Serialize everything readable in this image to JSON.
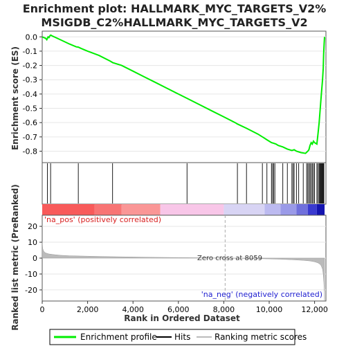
{
  "chart_data": [
    {
      "type": "line",
      "title_line1": "Enrichment plot: HALLMARK_MYC_TARGETS_V2%",
      "title_line2": "MSIGDB_C2%HALLMARK_MYC_TARGETS_V2",
      "ylabel": "Enrichment score (ES)",
      "xlim": [
        0,
        12500
      ],
      "ylim": [
        -0.88,
        0.04
      ],
      "yticks": [
        0.0,
        -0.1,
        -0.2,
        -0.3,
        -0.4,
        -0.5,
        -0.6,
        -0.7,
        -0.8
      ],
      "ytick_labels": [
        "0.0",
        "-0.1",
        "-0.2",
        "-0.3",
        "-0.4",
        "-0.5",
        "-0.6",
        "-0.7",
        "-0.8"
      ],
      "grid": true,
      "color": "#00ee00",
      "series": [
        {
          "name": "Enrichment profile",
          "x": [
            0,
            150,
            200,
            260,
            300,
            350,
            380,
            420,
            800,
            1200,
            1500,
            1590,
            1700,
            2000,
            2500,
            3000,
            3100,
            3500,
            4000,
            4500,
            5000,
            5500,
            6000,
            6380,
            7000,
            7500,
            8000,
            8500,
            8600,
            9000,
            9500,
            9700,
            9900,
            10100,
            10200,
            10300,
            10400,
            10600,
            10800,
            11000,
            11100,
            11200,
            11400,
            11600,
            11700,
            11750,
            11800,
            11850,
            11900,
            11950,
            12000,
            12100,
            12150,
            12200,
            12250,
            12300,
            12350,
            12380,
            12400,
            12420,
            12440
          ],
          "y": [
            0.0,
            -0.01,
            -0.02,
            0.0,
            -0.005,
            0.01,
            0.012,
            0.008,
            -0.02,
            -0.05,
            -0.07,
            -0.072,
            -0.08,
            -0.1,
            -0.13,
            -0.17,
            -0.18,
            -0.2,
            -0.24,
            -0.28,
            -0.32,
            -0.36,
            -0.4,
            -0.43,
            -0.48,
            -0.52,
            -0.56,
            -0.6,
            -0.61,
            -0.64,
            -0.68,
            -0.7,
            -0.72,
            -0.74,
            -0.745,
            -0.75,
            -0.76,
            -0.77,
            -0.785,
            -0.795,
            -0.79,
            -0.8,
            -0.81,
            -0.815,
            -0.8,
            -0.79,
            -0.76,
            -0.74,
            -0.75,
            -0.73,
            -0.74,
            -0.75,
            -0.68,
            -0.6,
            -0.5,
            -0.4,
            -0.3,
            -0.22,
            -0.12,
            -0.05,
            0.0
          ]
        }
      ]
    },
    {
      "type": "hits",
      "name": "Hits",
      "color": "#000000",
      "hit_positions": [
        230,
        370,
        1590,
        3100,
        6380,
        8600,
        9000,
        9700,
        9900,
        10100,
        10150,
        10200,
        10250,
        10600,
        10800,
        11000,
        11050,
        11100,
        11200,
        11300,
        11500,
        11650,
        11700,
        11750,
        11800,
        11850,
        11900,
        11950,
        12000,
        12100,
        12150,
        12200,
        12230,
        12260,
        12290,
        12320,
        12350,
        12380,
        12410
      ]
    },
    {
      "type": "heatmap",
      "name": "rank color bar",
      "segments": [
        {
          "from": 0,
          "to": 2300,
          "color": "#f85a5a"
        },
        {
          "from": 2300,
          "to": 3500,
          "color": "#f87474"
        },
        {
          "from": 3500,
          "to": 5200,
          "color": "#fa9696"
        },
        {
          "from": 5200,
          "to": 8000,
          "color": "#f8c6e8"
        },
        {
          "from": 8000,
          "to": 9800,
          "color": "#d8d4f4"
        },
        {
          "from": 9800,
          "to": 10500,
          "color": "#bcbaf0"
        },
        {
          "from": 10500,
          "to": 11200,
          "color": "#9a9ae8"
        },
        {
          "from": 11200,
          "to": 11700,
          "color": "#7070dc"
        },
        {
          "from": 11700,
          "to": 12100,
          "color": "#3a3ad0"
        },
        {
          "from": 12100,
          "to": 12440,
          "color": "#1414b0"
        }
      ]
    },
    {
      "type": "area",
      "ylabel": "Ranked list metric (PreRanked)",
      "xlabel": "Rank in Ordered Dataset",
      "xlim": [
        0,
        12500
      ],
      "ylim": [
        -27,
        27
      ],
      "xticks": [
        0,
        2000,
        4000,
        6000,
        8000,
        10000,
        12000
      ],
      "xtick_labels": [
        "0",
        "2,000",
        "4,000",
        "6,000",
        "8,000",
        "10,000",
        "12,000"
      ],
      "yticks": [
        20,
        10,
        0,
        -10,
        -20
      ],
      "ytick_labels": [
        "20",
        "10",
        "0",
        "-10",
        "-20"
      ],
      "grid": true,
      "fill_color": "#bbbbbb",
      "x": [
        0,
        20,
        60,
        120,
        200,
        300,
        500,
        800,
        1200,
        2000,
        3000,
        4000,
        5000,
        6000,
        7000,
        8000,
        8059,
        9000,
        10000,
        10500,
        11000,
        11500,
        11800,
        12000,
        12150,
        12250,
        12300,
        12350,
        12380,
        12410,
        12430,
        12440
      ],
      "y": [
        10,
        6,
        4.5,
        3.5,
        3,
        2.6,
        2.2,
        1.8,
        1.5,
        1.2,
        0.9,
        0.7,
        0.5,
        0.35,
        0.2,
        0.05,
        0,
        -0.2,
        -0.5,
        -0.7,
        -1.0,
        -1.4,
        -1.8,
        -2.3,
        -3,
        -4,
        -5,
        -7,
        -10,
        -15,
        -21,
        -27
      ],
      "annotations": {
        "zero_cross": "Zero cross at 8059",
        "zero_cross_x": 8059,
        "pos_label": "'na_pos' (positively correlated)",
        "neg_label": "'na_neg' (negatively correlated)",
        "pos_color": "#d82020",
        "neg_color": "#2020d0"
      }
    }
  ],
  "legend": {
    "items": [
      {
        "label": "Enrichment profile",
        "color": "#00ee00"
      },
      {
        "label": "Hits",
        "color": "#000000"
      },
      {
        "label": "Ranking metric scores",
        "color": "#bbbbbb"
      }
    ]
  }
}
